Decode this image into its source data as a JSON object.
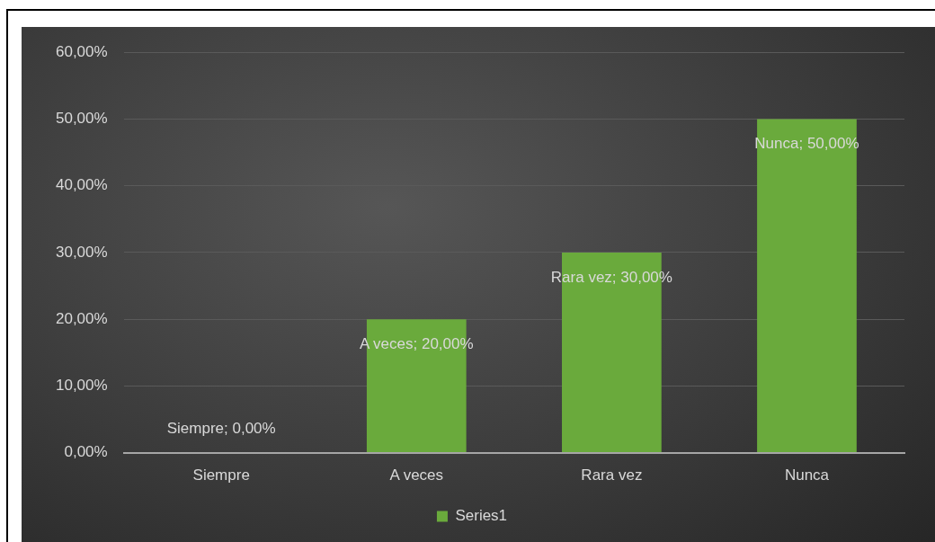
{
  "chart_data": {
    "type": "bar",
    "categories": [
      "Siempre",
      "A veces",
      "Rara vez",
      "Nunca"
    ],
    "series": [
      {
        "name": "Series1",
        "color": "#6aaa3c",
        "values": [
          0,
          20,
          30,
          50
        ]
      }
    ],
    "value_labels": [
      "Siempre; 0,00%",
      "A veces; 20,00%",
      "Rara vez; 30,00%",
      "Nunca; 50,00%"
    ],
    "ylim": [
      0,
      60
    ],
    "yticks": [
      {
        "value": 0,
        "label": "0,00%"
      },
      {
        "value": 10,
        "label": "10,00%"
      },
      {
        "value": 20,
        "label": "20,00%"
      },
      {
        "value": 30,
        "label": "30,00%"
      },
      {
        "value": 40,
        "label": "40,00%"
      },
      {
        "value": 50,
        "label": "50,00%"
      },
      {
        "value": 60,
        "label": "60,00%"
      }
    ],
    "grid": "y",
    "legend": "bottom"
  }
}
